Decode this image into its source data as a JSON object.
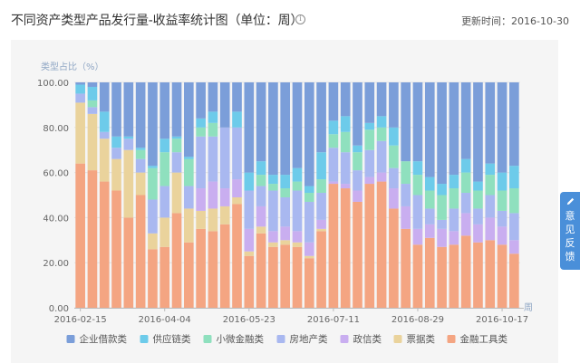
{
  "header": {
    "title": "不同资产类型产品发行量-收益率统计图（单位：周）",
    "update_label": "更新时间：2016-10-30"
  },
  "feedback": {
    "label": "意见反馈"
  },
  "chart_data": {
    "type": "bar",
    "stacked": true,
    "ylabel": "类型占比（%）",
    "xlabel": "周",
    "ylim": [
      0,
      100
    ],
    "yticks": [
      "0.00",
      "20.00",
      "40.00",
      "60.00",
      "80.00",
      "100.00"
    ],
    "grid": true,
    "legend_position": "bottom",
    "x_tick_labels": [
      "2016-02-15",
      "2016-04-04",
      "2016-05-23",
      "2016-07-11",
      "2016-08-29",
      "2016-10-17"
    ],
    "x_tick_indices": [
      0,
      7,
      14,
      21,
      28,
      35
    ],
    "series": [
      {
        "name": "金融工具类",
        "color": "#f4a582",
        "values": [
          64,
          61,
          56,
          52,
          40,
          50,
          26,
          27,
          42,
          29,
          35,
          34,
          37,
          46,
          23,
          33,
          27,
          28,
          27,
          22,
          34,
          55,
          53,
          47,
          55,
          56,
          44,
          35,
          28,
          31,
          27,
          28,
          32,
          29,
          30,
          28,
          24
        ]
      },
      {
        "name": "票据类",
        "color": "#ead39c",
        "values": [
          27,
          25,
          19,
          14,
          30,
          10,
          7,
          13,
          18,
          15,
          8,
          10,
          8,
          3,
          2,
          3,
          2,
          2,
          2,
          1,
          1,
          0,
          0,
          0,
          0,
          0,
          0,
          0,
          0,
          0,
          0,
          0,
          0,
          0,
          0,
          0,
          0
        ]
      },
      {
        "name": "政信类",
        "color": "#c9aef0",
        "values": [
          0,
          0,
          0,
          0,
          0,
          0,
          0,
          0,
          0,
          0,
          10,
          12,
          8,
          8,
          10,
          9,
          5,
          6,
          5,
          6,
          4,
          1,
          2,
          5,
          3,
          4,
          9,
          10,
          7,
          6,
          8,
          6,
          10,
          8,
          10,
          8,
          6
        ]
      },
      {
        "name": "房地产类",
        "color": "#a9b8f0",
        "values": [
          4,
          3,
          3,
          5,
          5,
          6,
          15,
          14,
          9,
          10,
          23,
          20,
          27,
          23,
          17,
          9,
          18,
          13,
          18,
          18,
          12,
          15,
          14,
          9,
          12,
          14,
          9,
          10,
          15,
          7,
          4,
          10,
          9,
          7,
          10,
          7,
          12
        ]
      },
      {
        "name": "小微金融类",
        "color": "#8fe0be",
        "values": [
          0,
          3,
          0,
          0,
          0,
          4,
          14,
          15,
          6,
          12,
          4,
          6,
          0,
          0,
          0,
          5,
          3,
          4,
          4,
          4,
          6,
          6,
          9,
          8,
          9,
          6,
          10,
          10,
          9,
          8,
          11,
          9,
          9,
          8,
          9,
          9,
          11
        ]
      },
      {
        "name": "供应链类",
        "color": "#6dcbea",
        "values": [
          4,
          6,
          9,
          5,
          1,
          1,
          1,
          6,
          1,
          1,
          4,
          5,
          0,
          7,
          8,
          6,
          4,
          6,
          6,
          3,
          12,
          6,
          7,
          3,
          3,
          5,
          8,
          0,
          6,
          6,
          5,
          6,
          6,
          4,
          5,
          8,
          10
        ]
      },
      {
        "name": "企业借款类",
        "color": "#7b9ed9",
        "values": [
          1,
          2,
          13,
          24,
          24,
          29,
          37,
          25,
          24,
          33,
          16,
          13,
          20,
          13,
          40,
          35,
          41,
          41,
          38,
          46,
          31,
          17,
          15,
          28,
          18,
          15,
          20,
          35,
          35,
          42,
          45,
          41,
          34,
          44,
          36,
          40,
          37
        ]
      }
    ]
  }
}
